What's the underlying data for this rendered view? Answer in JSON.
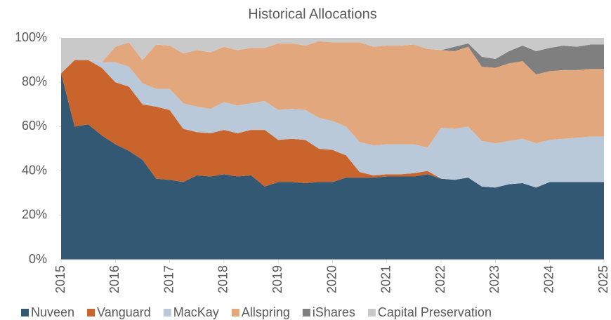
{
  "chart_data": {
    "type": "stacked_area",
    "title": "Historical Allocations",
    "x": [
      2015,
      2015.25,
      2015.5,
      2015.75,
      2016,
      2016.25,
      2016.5,
      2016.75,
      2017,
      2017.25,
      2017.5,
      2017.75,
      2018,
      2018.25,
      2018.5,
      2018.75,
      2019,
      2019.25,
      2019.5,
      2019.75,
      2020,
      2020.25,
      2020.5,
      2020.75,
      2021,
      2021.25,
      2021.5,
      2021.75,
      2022,
      2022.25,
      2022.5,
      2022.75,
      2023,
      2023.25,
      2023.5,
      2023.75,
      2024,
      2024.25,
      2024.5,
      2024.75,
      2025
    ],
    "series": [
      {
        "name": "Nuveen",
        "color": "#335874",
        "values": [
          84,
          60,
          61,
          56,
          52,
          49,
          45,
          36.5,
          36,
          35,
          38,
          37.5,
          38.5,
          37.5,
          38,
          33,
          35,
          35,
          34.5,
          35,
          35,
          37,
          37,
          37,
          37.5,
          37.5,
          37.5,
          38.5,
          36.5,
          36,
          37,
          33,
          32.5,
          34,
          34.5,
          32.5,
          35,
          35,
          35,
          35,
          35
        ]
      },
      {
        "name": "Vanguard",
        "color": "#c9652c",
        "values": [
          0,
          30,
          29,
          30.5,
          28,
          29,
          25,
          32.5,
          31.5,
          24,
          19.5,
          19.5,
          20,
          19.5,
          20.5,
          25.5,
          19,
          19.5,
          19.5,
          15,
          14.5,
          10,
          2.5,
          1,
          1,
          1,
          1.5,
          1.5,
          0,
          0,
          0,
          0,
          0,
          0,
          0,
          0,
          0,
          0,
          0,
          0,
          0
        ]
      },
      {
        "name": "MacKay",
        "color": "#b9c9d9",
        "values": [
          0,
          0,
          0,
          2.5,
          9,
          9,
          9.5,
          8,
          9.5,
          11.5,
          11.5,
          11,
          12.5,
          12.5,
          12,
          13,
          13.5,
          13.5,
          13.5,
          14,
          13,
          13,
          13.5,
          13.5,
          13.5,
          13.5,
          13,
          10.5,
          23,
          23,
          23,
          20.5,
          20,
          19.5,
          20,
          20,
          19,
          19.5,
          20,
          20.5,
          20.5
        ]
      },
      {
        "name": "Allspring",
        "color": "#e3a77d",
        "values": [
          0,
          0,
          0,
          0,
          7,
          11,
          10.5,
          20,
          19.5,
          22.5,
          25.5,
          25.5,
          25,
          25,
          25,
          24,
          30,
          29.5,
          29,
          34.5,
          35.5,
          38,
          45,
          44.5,
          44.5,
          44.5,
          45,
          44.5,
          35,
          35,
          36,
          33.5,
          34,
          35,
          35,
          31,
          31,
          31,
          30.5,
          30.5,
          30.5
        ]
      },
      {
        "name": "iShares",
        "color": "#7f7f7f",
        "values": [
          0,
          0,
          0,
          0,
          0,
          0,
          0,
          0,
          0,
          0,
          0,
          0,
          0,
          0,
          0,
          0,
          0,
          0,
          0,
          0,
          0,
          0,
          0,
          0,
          0,
          0,
          0,
          0,
          0,
          2,
          1.5,
          4.5,
          4,
          5.5,
          7,
          10.5,
          10.5,
          11,
          10.5,
          11,
          11
        ]
      },
      {
        "name": "Capital Preservation",
        "color": "#c9c9c9",
        "values": [
          16,
          10,
          10,
          11,
          4,
          2,
          10,
          3,
          3.5,
          7,
          5.5,
          6.5,
          4,
          5.5,
          4.5,
          4.5,
          2.5,
          2.5,
          3.5,
          1.5,
          2,
          2,
          2,
          4,
          3.5,
          3.5,
          3,
          5,
          5.5,
          4,
          2.5,
          8.5,
          9.5,
          6,
          3.5,
          6,
          4.5,
          3.5,
          4,
          3,
          3
        ]
      }
    ],
    "xlim": [
      2015,
      2025
    ],
    "xticks": [
      2015,
      2016,
      2017,
      2018,
      2019,
      2020,
      2021,
      2022,
      2023,
      2024,
      2025
    ],
    "ylim": [
      0,
      100
    ],
    "yticks": [
      {
        "value": 0,
        "label": "0%"
      },
      {
        "value": 20,
        "label": "20%"
      },
      {
        "value": 40,
        "label": "40%"
      },
      {
        "value": 60,
        "label": "60%"
      },
      {
        "value": 80,
        "label": "80%"
      },
      {
        "value": 100,
        "label": "100%"
      }
    ],
    "legend": "bottom"
  }
}
